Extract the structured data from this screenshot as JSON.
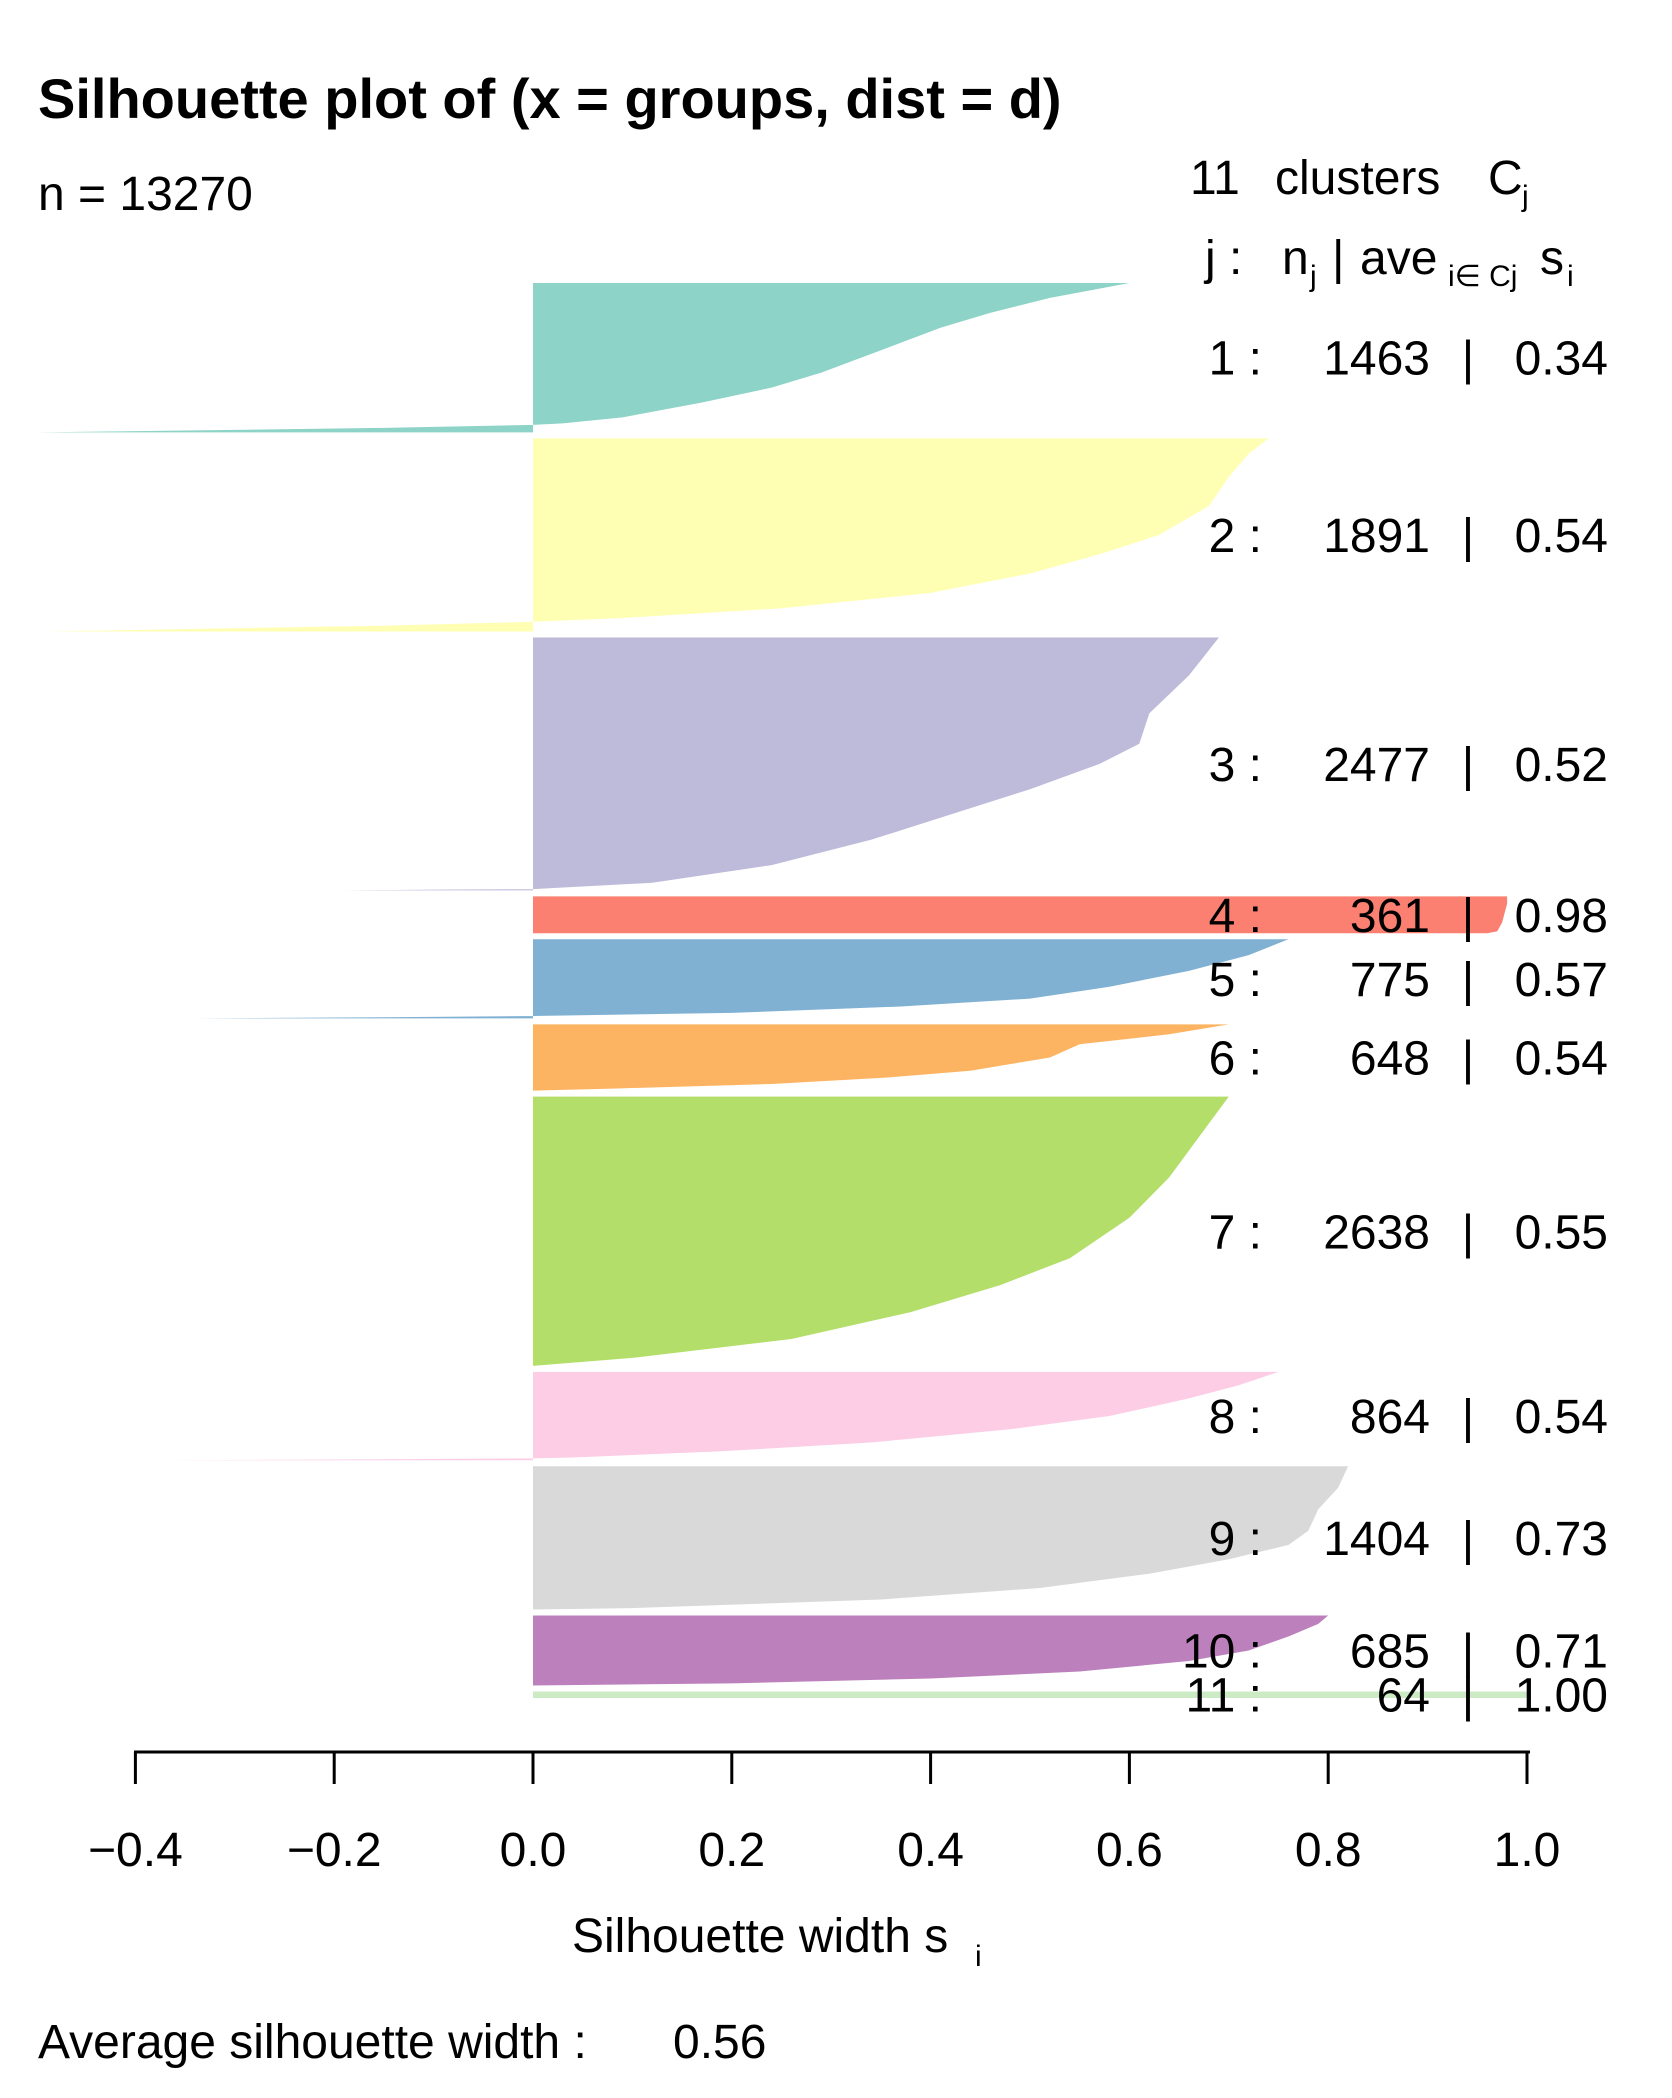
{
  "chart_data": {
    "type": "silhouette",
    "title": "Silhouette plot of (x = groups, dist = d)",
    "n_label": "n = 13270",
    "legend_header": {
      "clusters_count": "11",
      "clusters_word": "clusters",
      "c_symbol": "C",
      "c_sub": "j",
      "col_label_j": "j :",
      "col_label_n": "n",
      "col_label_n_sub": "j",
      "col_label_sep": "|",
      "col_label_ave": "ave",
      "col_label_ave_sub": "i∈ Cj",
      "col_label_s": "s",
      "col_label_s_sub": "i"
    },
    "xlabel": "Silhouette width s",
    "xlabel_sub": "i",
    "footer_label": "Average silhouette width :",
    "footer_value": "0.56",
    "xlim": [
      -0.4,
      1.0
    ],
    "x_ticks": [
      -0.4,
      -0.2,
      0.0,
      0.2,
      0.4,
      0.6,
      0.8,
      1.0
    ],
    "x_tick_labels": [
      "−0.4",
      "−0.2",
      "0.0",
      "0.2",
      "0.4",
      "0.6",
      "0.8",
      "1.0"
    ],
    "clusters": [
      {
        "j": "1",
        "n": "1463",
        "ave": "0.34",
        "color": "#8DD3C7",
        "size": 1463,
        "profile": [
          [
            0,
            0.6
          ],
          [
            0.05,
            0.56
          ],
          [
            0.1,
            0.52
          ],
          [
            0.2,
            0.46
          ],
          [
            0.3,
            0.41
          ],
          [
            0.4,
            0.37
          ],
          [
            0.5,
            0.33
          ],
          [
            0.6,
            0.29
          ],
          [
            0.7,
            0.24
          ],
          [
            0.8,
            0.17
          ],
          [
            0.9,
            0.09
          ],
          [
            0.94,
            0.03
          ],
          [
            0.95,
            0.0
          ],
          [
            0.97,
            -0.15
          ],
          [
            1,
            -0.5
          ]
        ]
      },
      {
        "j": "2",
        "n": "1891",
        "ave": "0.54",
        "color": "#FFFFB3",
        "size": 1891,
        "profile": [
          [
            0,
            0.74
          ],
          [
            0.08,
            0.72
          ],
          [
            0.2,
            0.7
          ],
          [
            0.35,
            0.68
          ],
          [
            0.5,
            0.63
          ],
          [
            0.6,
            0.57
          ],
          [
            0.7,
            0.5
          ],
          [
            0.8,
            0.4
          ],
          [
            0.88,
            0.25
          ],
          [
            0.93,
            0.09
          ],
          [
            0.95,
            0.0
          ],
          [
            0.97,
            -0.15
          ],
          [
            1,
            -0.49
          ]
        ]
      },
      {
        "j": "3",
        "n": "2477",
        "ave": "0.52",
        "color": "#BEBADA",
        "size": 2477,
        "profile": [
          [
            0,
            0.69
          ],
          [
            0.15,
            0.66
          ],
          [
            0.3,
            0.62
          ],
          [
            0.42,
            0.61
          ],
          [
            0.5,
            0.57
          ],
          [
            0.6,
            0.5
          ],
          [
            0.7,
            0.42
          ],
          [
            0.8,
            0.34
          ],
          [
            0.9,
            0.24
          ],
          [
            0.97,
            0.12
          ],
          [
            0.995,
            0.0
          ],
          [
            0.997,
            -0.1
          ],
          [
            1,
            -0.19
          ]
        ]
      },
      {
        "j": "4",
        "n": "361",
        "ave": "0.98",
        "color": "#FB8072",
        "size": 361,
        "profile": [
          [
            0,
            0.98
          ],
          [
            0.2,
            0.98
          ],
          [
            0.7,
            0.975
          ],
          [
            0.95,
            0.97
          ],
          [
            1,
            0.96
          ]
        ]
      },
      {
        "j": "5",
        "n": "775",
        "ave": "0.57",
        "color": "#80B1D3",
        "size": 775,
        "profile": [
          [
            0,
            0.76
          ],
          [
            0.2,
            0.72
          ],
          [
            0.4,
            0.66
          ],
          [
            0.6,
            0.58
          ],
          [
            0.75,
            0.5
          ],
          [
            0.85,
            0.37
          ],
          [
            0.93,
            0.2
          ],
          [
            0.97,
            0.0
          ],
          [
            0.985,
            -0.15
          ],
          [
            1,
            -0.34
          ]
        ]
      },
      {
        "j": "6",
        "n": "648",
        "ave": "0.54",
        "color": "#FDB462",
        "size": 648,
        "profile": [
          [
            0,
            0.7
          ],
          [
            0.15,
            0.64
          ],
          [
            0.3,
            0.55
          ],
          [
            0.5,
            0.52
          ],
          [
            0.6,
            0.48
          ],
          [
            0.7,
            0.44
          ],
          [
            0.8,
            0.36
          ],
          [
            0.9,
            0.24
          ],
          [
            0.97,
            0.08
          ],
          [
            1,
            0.0
          ]
        ]
      },
      {
        "j": "7",
        "n": "2638",
        "ave": "0.55",
        "color": "#B3DE69",
        "size": 2638,
        "profile": [
          [
            0,
            0.7
          ],
          [
            0.1,
            0.68
          ],
          [
            0.3,
            0.64
          ],
          [
            0.45,
            0.6
          ],
          [
            0.6,
            0.54
          ],
          [
            0.7,
            0.47
          ],
          [
            0.8,
            0.38
          ],
          [
            0.9,
            0.26
          ],
          [
            0.97,
            0.1
          ],
          [
            1,
            0.0
          ]
        ]
      },
      {
        "j": "8",
        "n": "864",
        "ave": "0.54",
        "color": "#FCCDE5",
        "size": 864,
        "profile": [
          [
            0,
            0.75
          ],
          [
            0.15,
            0.71
          ],
          [
            0.3,
            0.66
          ],
          [
            0.5,
            0.58
          ],
          [
            0.65,
            0.48
          ],
          [
            0.8,
            0.34
          ],
          [
            0.9,
            0.19
          ],
          [
            0.97,
            0.04
          ],
          [
            0.98,
            0.0
          ],
          [
            0.99,
            -0.15
          ],
          [
            1,
            -0.37
          ]
        ]
      },
      {
        "j": "9",
        "n": "1404",
        "ave": "0.73",
        "color": "#D9D9D9",
        "size": 1404,
        "profile": [
          [
            0,
            0.82
          ],
          [
            0.15,
            0.81
          ],
          [
            0.3,
            0.79
          ],
          [
            0.45,
            0.78
          ],
          [
            0.55,
            0.76
          ],
          [
            0.65,
            0.7
          ],
          [
            0.75,
            0.62
          ],
          [
            0.85,
            0.51
          ],
          [
            0.93,
            0.35
          ],
          [
            0.99,
            0.1
          ],
          [
            1,
            0.0
          ]
        ]
      },
      {
        "j": "10",
        "n": "685",
        "ave": "0.71",
        "color": "#BC80BD",
        "size": 685,
        "profile": [
          [
            0,
            0.8
          ],
          [
            0.12,
            0.79
          ],
          [
            0.3,
            0.76
          ],
          [
            0.5,
            0.72
          ],
          [
            0.65,
            0.66
          ],
          [
            0.8,
            0.55
          ],
          [
            0.9,
            0.4
          ],
          [
            0.97,
            0.2
          ],
          [
            1,
            0.0
          ]
        ]
      },
      {
        "j": "11",
        "n": "64",
        "ave": "1.00",
        "color": "#CCEBC5",
        "size": 64,
        "profile": [
          [
            0,
            1.0
          ],
          [
            1,
            1.0
          ]
        ]
      }
    ]
  }
}
